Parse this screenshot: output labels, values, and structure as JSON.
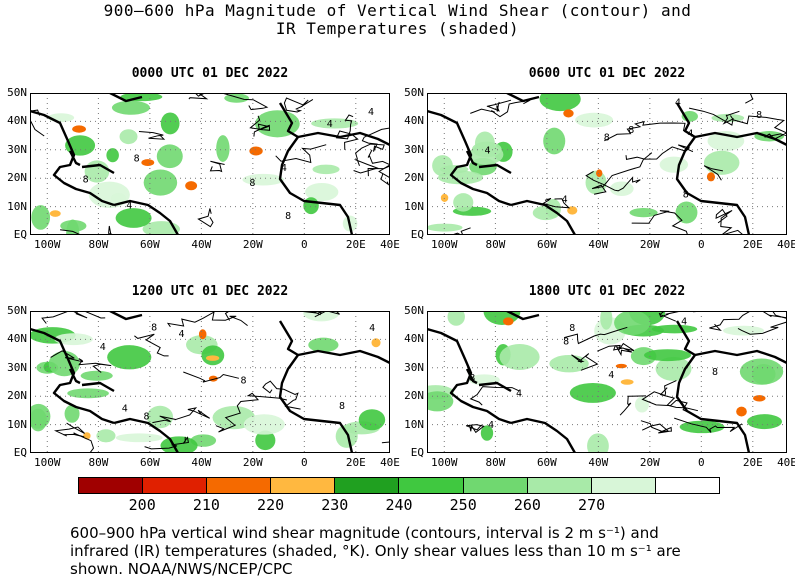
{
  "title_line1": "900–600 hPa Magnitude of Vertical Wind Shear (contour) and",
  "title_line2": "IR Temperatures (shaded)",
  "panels": [
    {
      "title": "0000 UTC 01 DEC 2022"
    },
    {
      "title": "0600 UTC 01 DEC 2022"
    },
    {
      "title": "1200 UTC 01 DEC 2022"
    },
    {
      "title": "1800 UTC 01 DEC 2022"
    }
  ],
  "lat_labels": [
    "50N",
    "40N",
    "30N",
    "20N",
    "10N",
    "EQ"
  ],
  "lon_labels": [
    "100W",
    "80W",
    "60W",
    "40W",
    "20W",
    "0",
    "20E",
    "40E"
  ],
  "colorbar": {
    "labels": [
      "200",
      "210",
      "220",
      "230",
      "240",
      "250",
      "260",
      "270"
    ],
    "colors": [
      "#a00000",
      "#e02000",
      "#f56a00",
      "#ffb840",
      "#20a020",
      "#40c840",
      "#70d870",
      "#a8eaa8",
      "#d8f6d8",
      "#ffffff"
    ]
  },
  "caption_line1": "600–900 hPa vertical wind shear magnitude (contours, interval is 2 m s⁻¹) and",
  "caption_line2": "infrared (IR) temperatures (shaded, °K). Only shear values less than 10 m s⁻¹ are",
  "caption_line3": "shown. NOAA/NWS/NCEP/CPC",
  "contour_labels": [
    "4",
    "8"
  ]
}
